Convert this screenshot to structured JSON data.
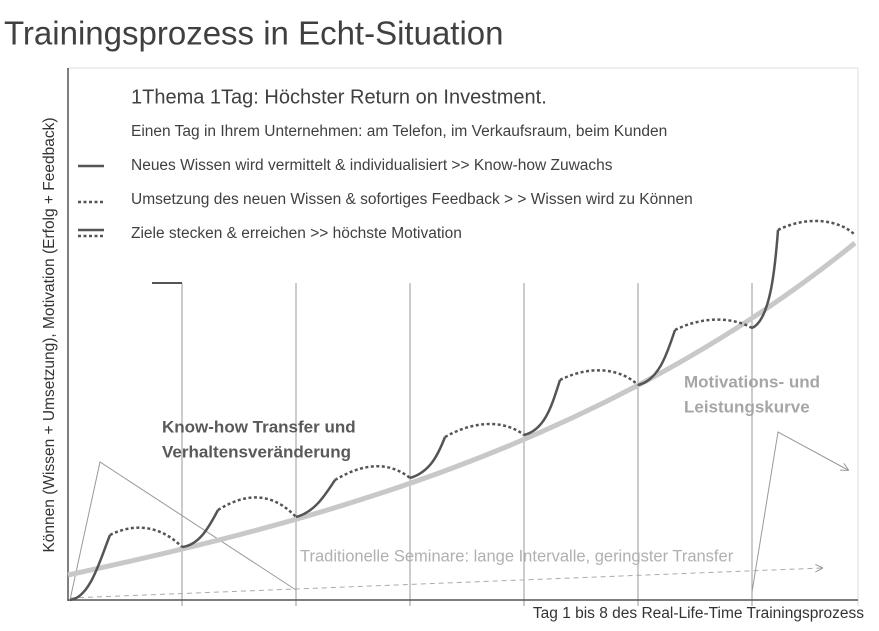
{
  "header": {
    "title": "Trainingsprozess in Echt-Situation"
  },
  "axes": {
    "y_label": "Können (Wissen + Umsetzung), Motivation (Erfolg + Feedback)",
    "x_label": "Tag 1 bis 8 des Real-Life-Time Trainingsprozess"
  },
  "headline": "1Thema 1Tag: Höchster Return on Investment.",
  "intro": "Einen Tag in Ihrem Unternehmen: am Telefon, im Verkaufsraum, beim Kunden",
  "legend": [
    {
      "label": "Neues Wissen wird vermittelt & individualisiert >> Know-how Zuwachs"
    },
    {
      "label": "Umsetzung des neuen Wissen & sofortiges Feedback > > Wissen wird zu Können"
    },
    {
      "label": "Ziele stecken & erreichen >> höchste Motivation"
    }
  ],
  "annotations": {
    "transfer": [
      "Know-how Transfer und",
      "Verhaltensveränderung"
    ],
    "curve": [
      "Motivations- und",
      "Leistungskurve"
    ],
    "traditional": "Traditionelle Seminare: lange Intervalle, geringster Transfer"
  }
}
